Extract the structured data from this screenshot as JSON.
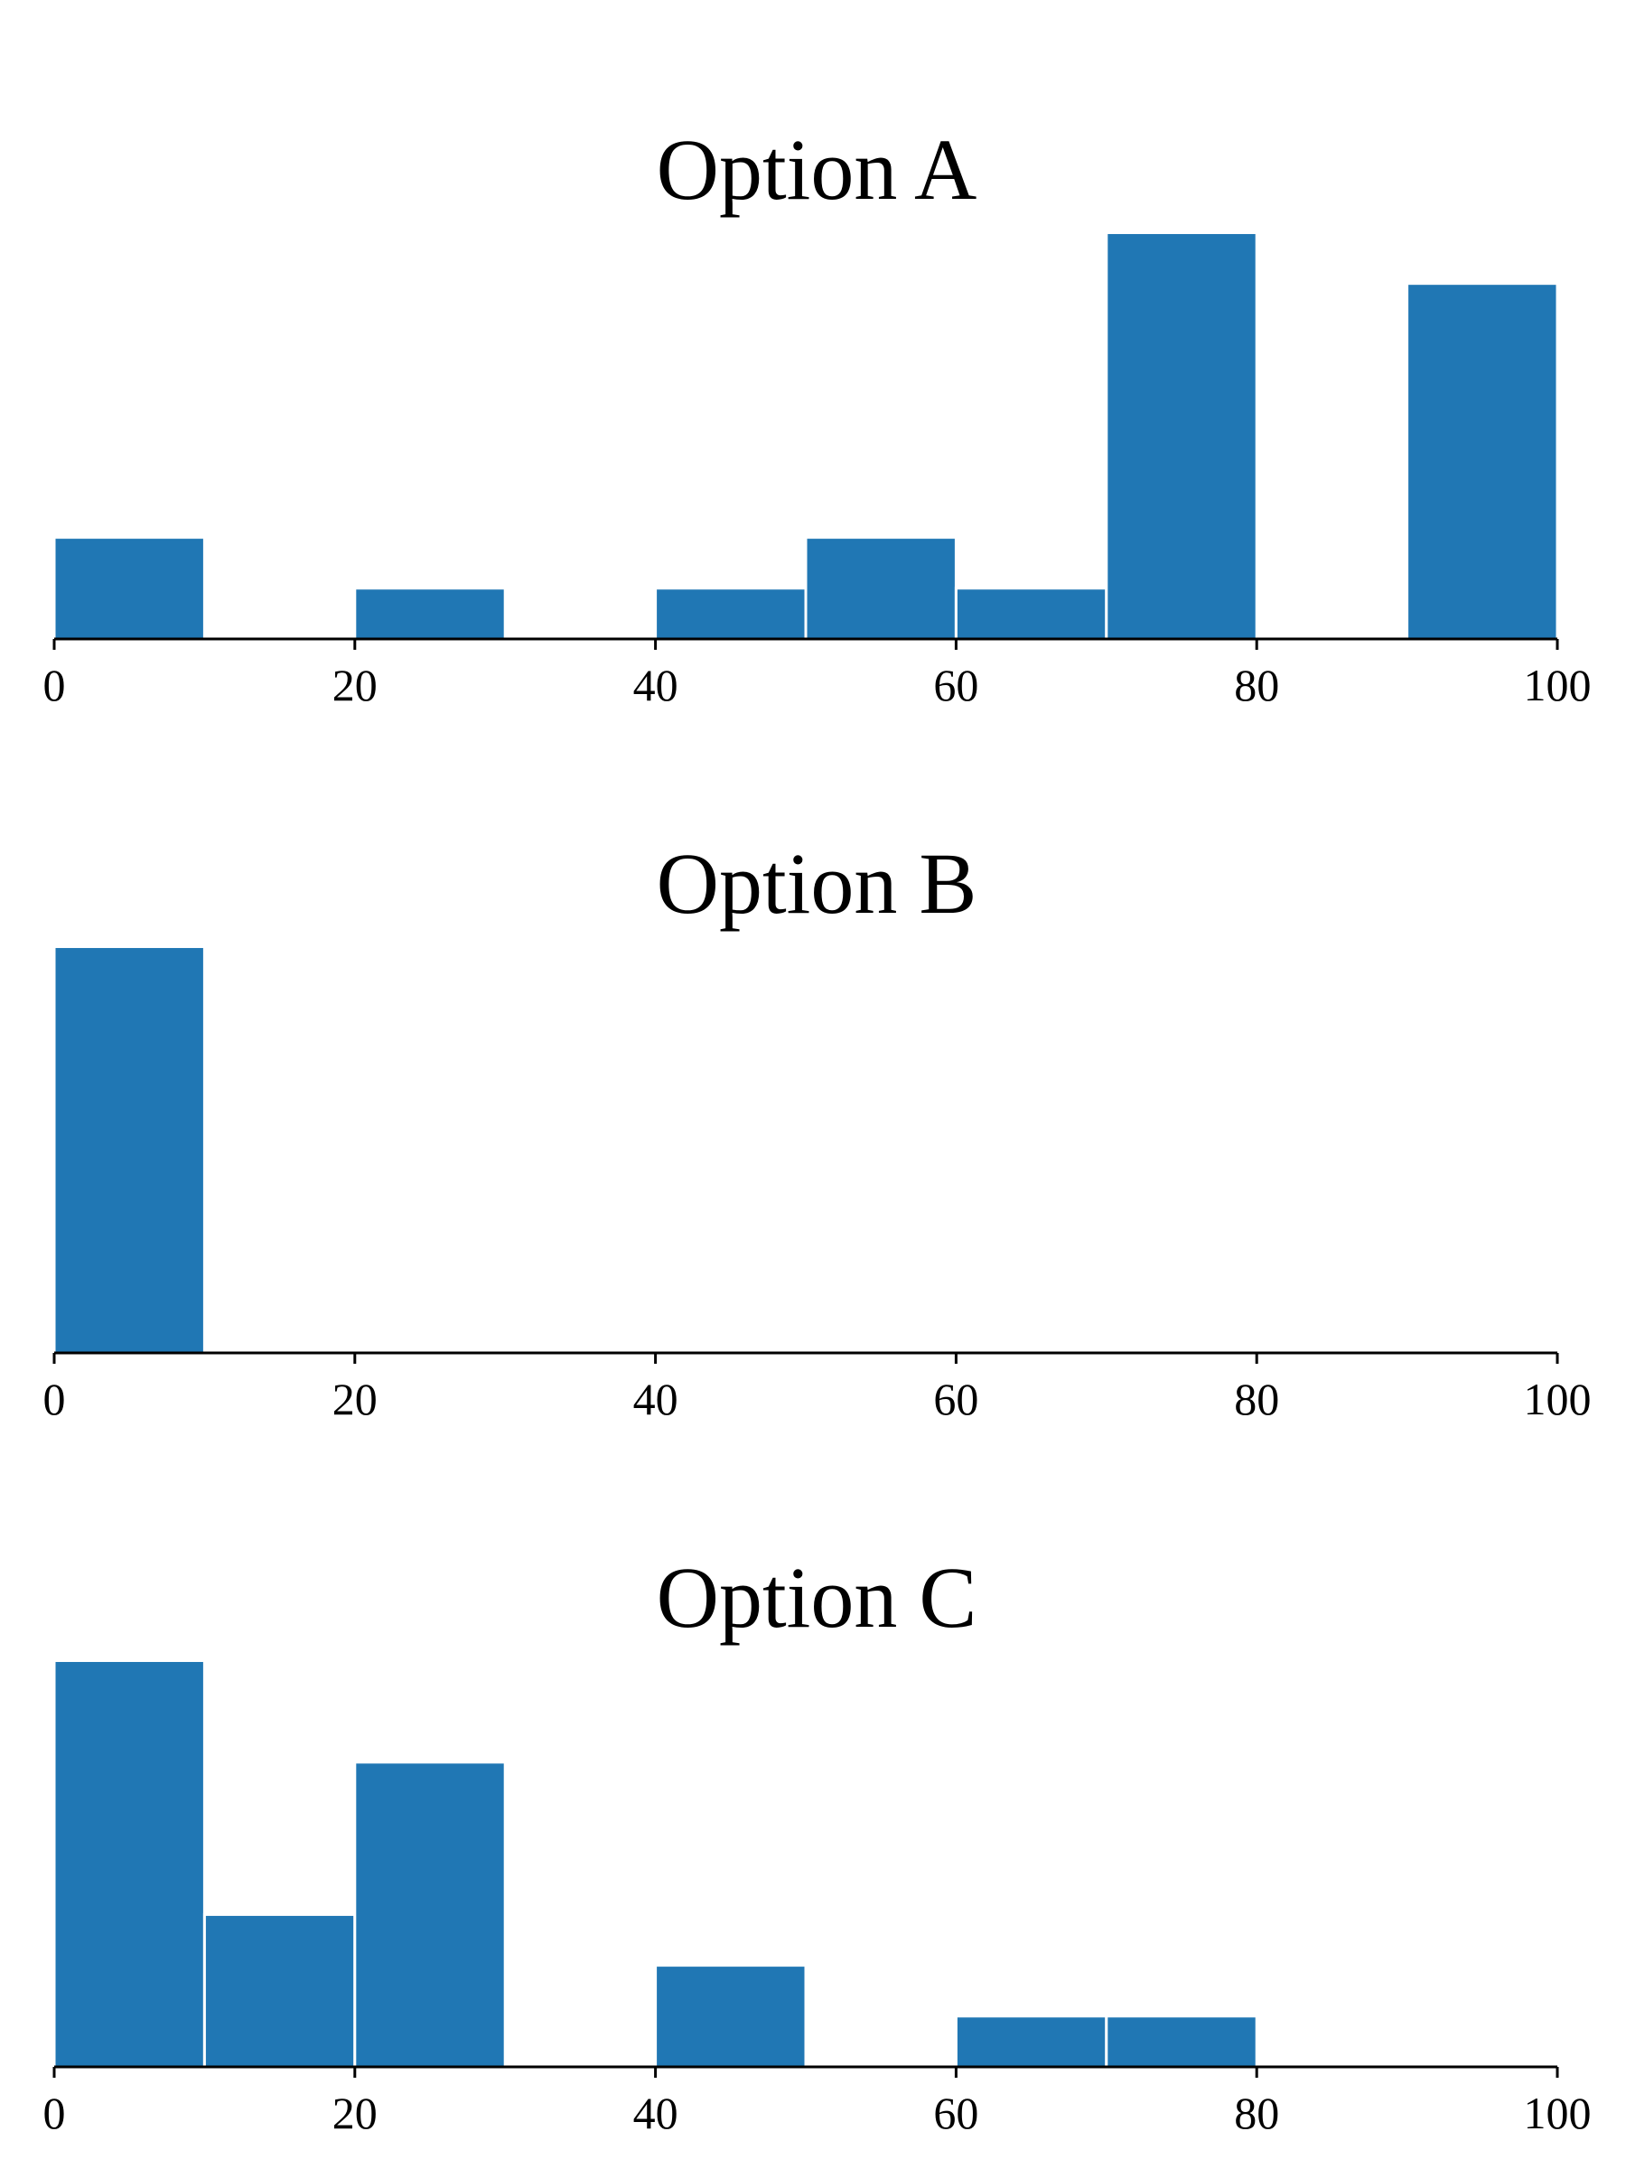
{
  "chart_data": [
    {
      "type": "bar",
      "title": "Option A",
      "xlabel": "",
      "ylabel": "",
      "xlim": [
        0,
        100
      ],
      "xticks": [
        "0",
        "20",
        "40",
        "60",
        "80",
        "100"
      ],
      "bin_width": 10,
      "bins": [
        0,
        10,
        20,
        30,
        40,
        50,
        60,
        70,
        80,
        90
      ],
      "values": [
        2,
        0,
        1,
        0,
        1,
        2,
        1,
        8,
        0,
        7
      ],
      "ylim": [
        0,
        8.4
      ],
      "grid": false,
      "color": "#2077b4"
    },
    {
      "type": "bar",
      "title": "Option B",
      "xlabel": "",
      "ylabel": "",
      "xlim": [
        0,
        100
      ],
      "xticks": [
        "0",
        "20",
        "40",
        "60",
        "80",
        "100"
      ],
      "bin_width": 10,
      "bins": [
        0,
        10,
        20,
        30,
        40,
        50,
        60,
        70,
        80,
        90
      ],
      "values": [
        24,
        0,
        0,
        0,
        0,
        0,
        0,
        0,
        0,
        0
      ],
      "ylim": [
        0,
        25.2
      ],
      "grid": false,
      "color": "#2077b4"
    },
    {
      "type": "bar",
      "title": "Option C",
      "xlabel": "",
      "ylabel": "",
      "xlim": [
        0,
        100
      ],
      "xticks": [
        "0",
        "20",
        "40",
        "60",
        "80",
        "100"
      ],
      "bin_width": 10,
      "bins": [
        0,
        10,
        20,
        30,
        40,
        50,
        60,
        70,
        80,
        90
      ],
      "values": [
        8,
        3,
        6,
        0,
        2,
        0,
        1,
        1,
        0,
        0
      ],
      "ylim": [
        0,
        8.4
      ],
      "grid": false,
      "color": "#2077b4"
    }
  ]
}
